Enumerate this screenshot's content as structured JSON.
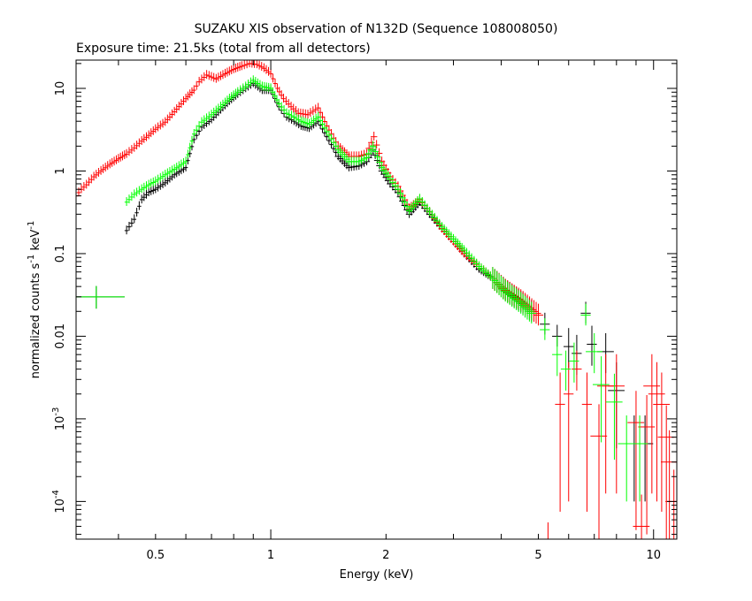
{
  "chart_data": {
    "type": "scatter",
    "title": "SUZAKU XIS observation of N132D (Sequence 108008050)",
    "subtitle": "Exposure time: 21.5ks (total from all detectors)",
    "xlabel": "Energy (keV)",
    "ylabel_main": "normalized counts s",
    "ylabel_mid": " keV",
    "ylabel_sup": "-1",
    "xscale": "log",
    "yscale": "log",
    "xlim": [
      0.31,
      11.5
    ],
    "ylim": [
      3.5e-05,
      22
    ],
    "x_ticks": [
      {
        "value": 0.5,
        "label": "0.5"
      },
      {
        "value": 1,
        "label": "1"
      },
      {
        "value": 2,
        "label": "2"
      },
      {
        "value": 5,
        "label": "5"
      },
      {
        "value": 10,
        "label": "10"
      }
    ],
    "y_ticks": [
      {
        "value": 10,
        "label": "10",
        "exp": ""
      },
      {
        "value": 1,
        "label": "1",
        "exp": ""
      },
      {
        "value": 0.1,
        "label": "0.1",
        "exp": ""
      },
      {
        "value": 0.01,
        "label": "0.01",
        "exp": ""
      },
      {
        "value": 0.001,
        "label": "10",
        "exp": "-3"
      },
      {
        "value": 0.0001,
        "label": "10",
        "exp": "-4"
      }
    ],
    "grid": false,
    "series_colors": [
      "#000000",
      "#ff0000",
      "#00ff00"
    ],
    "series": [
      {
        "color": "#000000",
        "points": [
          [
            0.42,
            0.19
          ],
          [
            0.44,
            0.26
          ],
          [
            0.46,
            0.45
          ],
          [
            0.48,
            0.55
          ],
          [
            0.5,
            0.6
          ],
          [
            0.53,
            0.72
          ],
          [
            0.56,
            0.9
          ],
          [
            0.6,
            1.1
          ],
          [
            0.63,
            2.4
          ],
          [
            0.66,
            3.4
          ],
          [
            0.7,
            4.2
          ],
          [
            0.74,
            5.5
          ],
          [
            0.78,
            7.0
          ],
          [
            0.82,
            8.5
          ],
          [
            0.86,
            10.0
          ],
          [
            0.9,
            11.5
          ],
          [
            0.95,
            9.5
          ],
          [
            1.0,
            9.5
          ],
          [
            1.05,
            6.0
          ],
          [
            1.1,
            4.5
          ],
          [
            1.15,
            4.0
          ],
          [
            1.2,
            3.5
          ],
          [
            1.26,
            3.3
          ],
          [
            1.33,
            4.0
          ],
          [
            1.4,
            2.6
          ],
          [
            1.5,
            1.5
          ],
          [
            1.6,
            1.1
          ],
          [
            1.7,
            1.15
          ],
          [
            1.78,
            1.3
          ],
          [
            1.85,
            1.8
          ],
          [
            1.95,
            1.0
          ],
          [
            2.05,
            0.7
          ],
          [
            2.15,
            0.55
          ],
          [
            2.3,
            0.3
          ],
          [
            2.45,
            0.42
          ],
          [
            2.6,
            0.3
          ],
          [
            2.8,
            0.2
          ],
          [
            3.0,
            0.14
          ],
          [
            3.2,
            0.1
          ],
          [
            3.5,
            0.065
          ],
          [
            3.8,
            0.05
          ],
          [
            4.1,
            0.036
          ],
          [
            4.5,
            0.026
          ],
          [
            4.8,
            0.02
          ],
          [
            5.2,
            0.014
          ],
          [
            5.6,
            0.01
          ],
          [
            6.0,
            0.0075
          ],
          [
            6.3,
            0.0062
          ],
          [
            6.65,
            0.019
          ],
          [
            6.9,
            0.008
          ],
          [
            7.5,
            0.0065
          ],
          [
            8.0,
            0.0022
          ],
          [
            8.9,
            0.0005
          ],
          [
            9.5,
            0.0005
          ]
        ]
      },
      {
        "color": "#ff0000",
        "points": [
          [
            0.31,
            0.5
          ],
          [
            0.32,
            0.6
          ],
          [
            0.33,
            0.68
          ],
          [
            0.345,
            0.85
          ],
          [
            0.36,
            1.0
          ],
          [
            0.38,
            1.2
          ],
          [
            0.4,
            1.4
          ],
          [
            0.42,
            1.6
          ],
          [
            0.44,
            1.9
          ],
          [
            0.46,
            2.3
          ],
          [
            0.48,
            2.7
          ],
          [
            0.5,
            3.2
          ],
          [
            0.53,
            3.9
          ],
          [
            0.56,
            5.2
          ],
          [
            0.6,
            7.5
          ],
          [
            0.63,
            9.5
          ],
          [
            0.65,
            12.0
          ],
          [
            0.68,
            14.5
          ],
          [
            0.72,
            13.0
          ],
          [
            0.76,
            15.0
          ],
          [
            0.8,
            17.0
          ],
          [
            0.84,
            18.5
          ],
          [
            0.88,
            20.0
          ],
          [
            0.92,
            19.5
          ],
          [
            0.96,
            17.5
          ],
          [
            1.0,
            15.0
          ],
          [
            1.04,
            10.0
          ],
          [
            1.08,
            7.5
          ],
          [
            1.13,
            6.0
          ],
          [
            1.18,
            5.0
          ],
          [
            1.25,
            4.8
          ],
          [
            1.33,
            5.8
          ],
          [
            1.4,
            3.5
          ],
          [
            1.5,
            2.0
          ],
          [
            1.6,
            1.5
          ],
          [
            1.7,
            1.5
          ],
          [
            1.78,
            1.6
          ],
          [
            1.86,
            2.6
          ],
          [
            1.95,
            1.3
          ],
          [
            2.05,
            0.85
          ],
          [
            2.15,
            0.65
          ],
          [
            2.3,
            0.35
          ],
          [
            2.45,
            0.45
          ],
          [
            2.6,
            0.32
          ],
          [
            2.8,
            0.2
          ],
          [
            3.0,
            0.14
          ],
          [
            3.2,
            0.1
          ],
          [
            3.5,
            0.07
          ],
          [
            3.8,
            0.05
          ],
          [
            4.1,
            0.036
          ],
          [
            4.5,
            0.027
          ],
          [
            5.0,
            0.018
          ],
          [
            5.3,
            2.3e-05
          ],
          [
            5.7,
            0.0015
          ],
          [
            6.0,
            0.002
          ],
          [
            6.3,
            0.004
          ],
          [
            6.7,
            0.0015
          ],
          [
            7.2,
            0.00062
          ],
          [
            7.5,
            0.0025
          ],
          [
            8.0,
            0.0025
          ],
          [
            9.0,
            0.0009
          ],
          [
            9.3,
            5e-05
          ],
          [
            9.6,
            0.0008
          ],
          [
            9.9,
            0.0025
          ],
          [
            10.2,
            0.002
          ],
          [
            10.5,
            0.0015
          ],
          [
            10.8,
            0.0006
          ],
          [
            11.0,
            0.0003
          ],
          [
            11.3,
            0.0001
          ]
        ]
      },
      {
        "color": "#00ff00",
        "points": [
          [
            0.42,
            0.42
          ],
          [
            0.44,
            0.52
          ],
          [
            0.46,
            0.6
          ],
          [
            0.48,
            0.68
          ],
          [
            0.5,
            0.75
          ],
          [
            0.53,
            0.9
          ],
          [
            0.56,
            1.05
          ],
          [
            0.6,
            1.3
          ],
          [
            0.63,
            2.8
          ],
          [
            0.66,
            3.9
          ],
          [
            0.7,
            4.8
          ],
          [
            0.74,
            6.0
          ],
          [
            0.78,
            7.5
          ],
          [
            0.82,
            9.0
          ],
          [
            0.86,
            10.5
          ],
          [
            0.9,
            12.5
          ],
          [
            0.95,
            10.5
          ],
          [
            1.0,
            10.0
          ],
          [
            1.05,
            6.5
          ],
          [
            1.1,
            5.0
          ],
          [
            1.15,
            4.5
          ],
          [
            1.2,
            4.0
          ],
          [
            1.26,
            3.7
          ],
          [
            1.33,
            4.5
          ],
          [
            1.4,
            3.0
          ],
          [
            1.5,
            1.8
          ],
          [
            1.6,
            1.3
          ],
          [
            1.7,
            1.3
          ],
          [
            1.78,
            1.45
          ],
          [
            1.85,
            2.0
          ],
          [
            1.95,
            1.1
          ],
          [
            2.05,
            0.8
          ],
          [
            2.15,
            0.6
          ],
          [
            2.3,
            0.33
          ],
          [
            2.45,
            0.46
          ],
          [
            2.6,
            0.32
          ],
          [
            2.8,
            0.21
          ],
          [
            3.0,
            0.15
          ],
          [
            3.2,
            0.11
          ],
          [
            3.5,
            0.07
          ],
          [
            3.8,
            0.05
          ],
          [
            4.1,
            0.035
          ],
          [
            4.5,
            0.025
          ],
          [
            4.8,
            0.019
          ],
          [
            5.2,
            0.012
          ],
          [
            5.6,
            0.006
          ],
          [
            5.9,
            0.004
          ],
          [
            6.2,
            0.005
          ],
          [
            6.65,
            0.018
          ],
          [
            7.0,
            0.0065
          ],
          [
            7.3,
            0.0026
          ],
          [
            7.9,
            0.0016
          ],
          [
            8.5,
            0.0005
          ],
          [
            9.2,
            0.0005
          ]
        ]
      }
    ],
    "annotations": [
      {
        "color": "#000000",
        "x": 0.35,
        "y": 0.03
      },
      {
        "color": "#00ff00",
        "x": 0.35,
        "y": 0.03
      }
    ]
  }
}
